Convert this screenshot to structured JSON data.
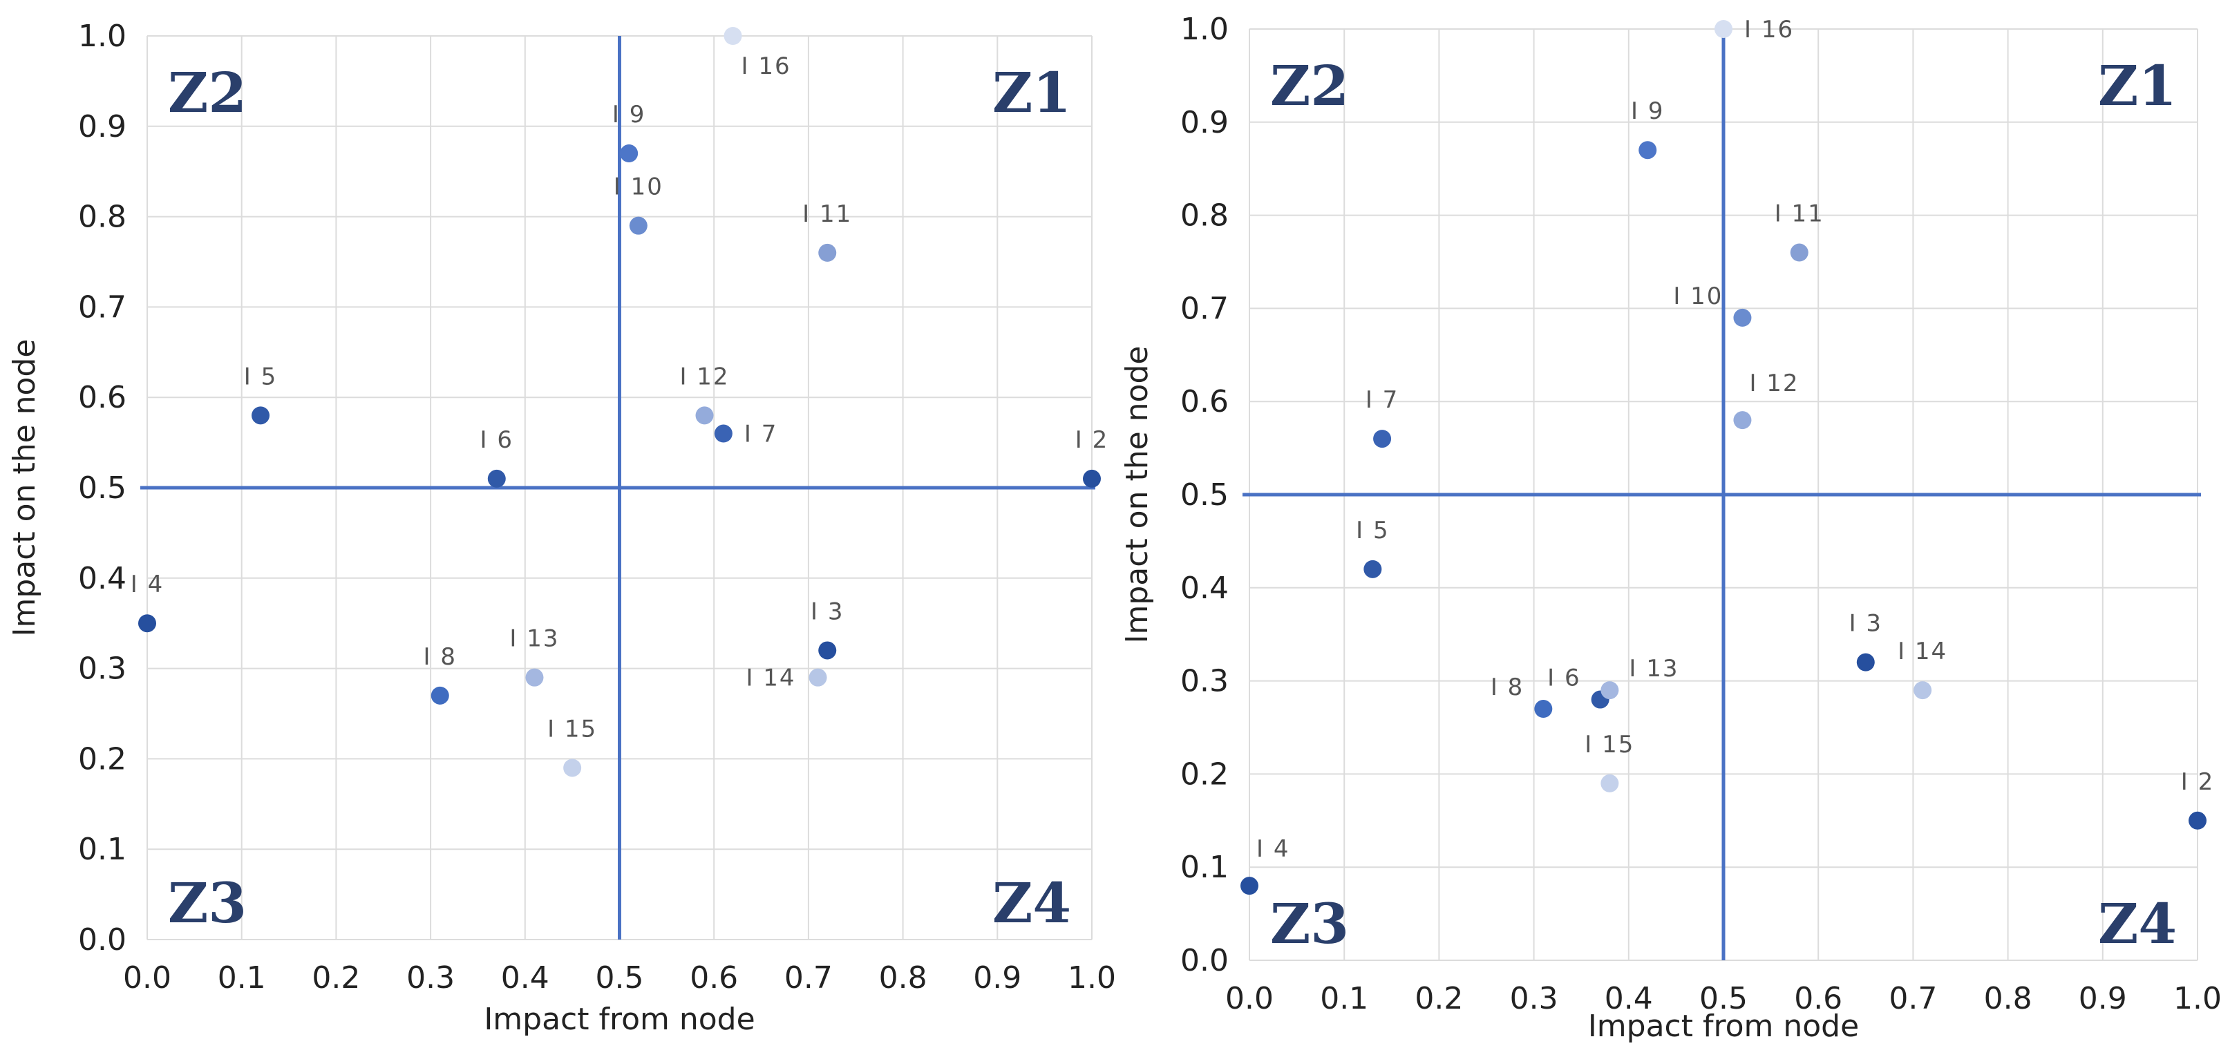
{
  "chart_data": [
    {
      "type": "scatter",
      "title": "",
      "xlabel": "Impact from node",
      "ylabel": "Impact on the node",
      "xlim": [
        0,
        1
      ],
      "ylim": [
        0,
        1
      ],
      "grid": true,
      "x_ticks": [
        "0.0",
        "0.1",
        "0.2",
        "0.3",
        "0.4",
        "0.5",
        "0.6",
        "0.7",
        "0.8",
        "0.9",
        "1.0"
      ],
      "y_ticks": [
        "0.0",
        "0.1",
        "0.2",
        "0.3",
        "0.4",
        "0.5",
        "0.6",
        "0.7",
        "0.8",
        "0.9",
        "1.0"
      ],
      "divider_x": 0.5,
      "divider_y": 0.5,
      "zones": [
        {
          "name": "Z1",
          "corner": "top-right"
        },
        {
          "name": "Z2",
          "corner": "top-left"
        },
        {
          "name": "Z3",
          "corner": "bottom-left"
        },
        {
          "name": "Z4",
          "corner": "bottom-right"
        }
      ],
      "points": [
        {
          "label": "I 2",
          "x": 1.0,
          "y": 0.51,
          "color": "#264f9e",
          "label_pos": "above"
        },
        {
          "label": "I 3",
          "x": 0.72,
          "y": 0.32,
          "color": "#264f9e",
          "label_pos": "above"
        },
        {
          "label": "I 4",
          "x": 0.0,
          "y": 0.35,
          "color": "#264f9e",
          "label_pos": "above"
        },
        {
          "label": "I 5",
          "x": 0.12,
          "y": 0.58,
          "color": "#3059a8",
          "label_pos": "above"
        },
        {
          "label": "I 6",
          "x": 0.37,
          "y": 0.51,
          "color": "#3059a8",
          "label_pos": "above"
        },
        {
          "label": "I 7",
          "x": 0.61,
          "y": 0.56,
          "color": "#3a63b4",
          "label_pos": "right"
        },
        {
          "label": "I 8",
          "x": 0.31,
          "y": 0.27,
          "color": "#3f6cc0",
          "label_pos": "above"
        },
        {
          "label": "I 9",
          "x": 0.51,
          "y": 0.87,
          "color": "#4d76c8",
          "label_pos": "above"
        },
        {
          "label": "I 10",
          "x": 0.52,
          "y": 0.79,
          "color": "#6a8ccf",
          "label_pos": "above"
        },
        {
          "label": "I 11",
          "x": 0.72,
          "y": 0.76,
          "color": "#869fd4",
          "label_pos": "above"
        },
        {
          "label": "I 12",
          "x": 0.59,
          "y": 0.58,
          "color": "#94abdb",
          "label_pos": "above"
        },
        {
          "label": "I 13",
          "x": 0.41,
          "y": 0.29,
          "color": "#a4b7e0",
          "label_pos": "above"
        },
        {
          "label": "I 14",
          "x": 0.71,
          "y": 0.29,
          "color": "#b6c6e6",
          "label_pos": "left"
        },
        {
          "label": "I 15",
          "x": 0.45,
          "y": 0.19,
          "color": "#c4d1eb",
          "label_pos": "above"
        },
        {
          "label": "I 16",
          "x": 0.62,
          "y": 1.0,
          "color": "#d6dff1",
          "label_pos": "below-right"
        }
      ]
    },
    {
      "type": "scatter",
      "title": "",
      "xlabel": "Impact from node",
      "ylabel": "Impact on the node",
      "xlim": [
        0,
        1
      ],
      "ylim": [
        0,
        1
      ],
      "grid": true,
      "x_ticks": [
        "0.0",
        "0.1",
        "0.2",
        "0.3",
        "0.4",
        "0.5",
        "0.6",
        "0.7",
        "0.8",
        "0.9",
        "1.0"
      ],
      "y_ticks": [
        "0.0",
        "0.1",
        "0.2",
        "0.3",
        "0.4",
        "0.5",
        "0.6",
        "0.7",
        "0.8",
        "0.9",
        "1.0"
      ],
      "divider_x": 0.5,
      "divider_y": 0.5,
      "zones": [
        {
          "name": "Z1",
          "corner": "top-right"
        },
        {
          "name": "Z2",
          "corner": "top-left"
        },
        {
          "name": "Z3",
          "corner": "bottom-left"
        },
        {
          "name": "Z4",
          "corner": "bottom-right"
        }
      ],
      "points": [
        {
          "label": "I 2",
          "x": 1.0,
          "y": 0.15,
          "color": "#264f9e",
          "label_pos": "above"
        },
        {
          "label": "I 3",
          "x": 0.65,
          "y": 0.32,
          "color": "#264f9e",
          "label_pos": "above"
        },
        {
          "label": "I 4",
          "x": 0.0,
          "y": 0.08,
          "color": "#264f9e",
          "label_pos": "above-right"
        },
        {
          "label": "I 5",
          "x": 0.13,
          "y": 0.42,
          "color": "#3059a8",
          "label_pos": "above"
        },
        {
          "label": "I 6",
          "x": 0.37,
          "y": 0.28,
          "color": "#3059a8",
          "label_pos": "left-up"
        },
        {
          "label": "I 7",
          "x": 0.14,
          "y": 0.56,
          "color": "#3a63b4",
          "label_pos": "above"
        },
        {
          "label": "I 8",
          "x": 0.31,
          "y": 0.27,
          "color": "#3f6cc0",
          "label_pos": "left-up"
        },
        {
          "label": "I 9",
          "x": 0.42,
          "y": 0.87,
          "color": "#4d76c8",
          "label_pos": "above"
        },
        {
          "label": "I 10",
          "x": 0.52,
          "y": 0.69,
          "color": "#6a8ccf",
          "label_pos": "left-up"
        },
        {
          "label": "I 11",
          "x": 0.58,
          "y": 0.76,
          "color": "#869fd4",
          "label_pos": "above"
        },
        {
          "label": "I 12",
          "x": 0.52,
          "y": 0.58,
          "color": "#94abdb",
          "label_pos": "above-right"
        },
        {
          "label": "I 13",
          "x": 0.38,
          "y": 0.29,
          "color": "#a4b7e0",
          "label_pos": "right-up"
        },
        {
          "label": "I 14",
          "x": 0.71,
          "y": 0.29,
          "color": "#b6c6e6",
          "label_pos": "above"
        },
        {
          "label": "I 15",
          "x": 0.38,
          "y": 0.19,
          "color": "#c4d1eb",
          "label_pos": "above"
        },
        {
          "label": "I 16",
          "x": 0.5,
          "y": 1.0,
          "color": "#d6dff1",
          "label_pos": "right"
        }
      ]
    }
  ]
}
